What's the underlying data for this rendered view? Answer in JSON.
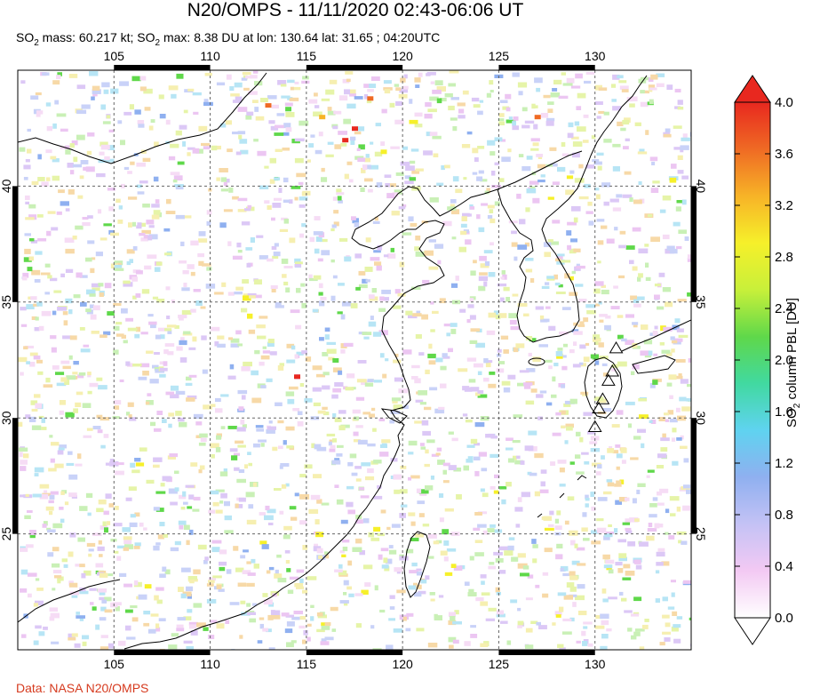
{
  "header": {
    "title": "N20/OMPS - 11/11/2020 02:43-06:06 UT",
    "subtitle_prefix": "SO",
    "subtitle_sub1": "2",
    "subtitle_mid": " mass: 60.217 kt; SO",
    "subtitle_sub2": "2",
    "subtitle_rest": " max: 8.38 DU at lon: 130.64 lat: 31.65 ; 04:20UTC"
  },
  "map": {
    "lon_range": [
      100,
      135
    ],
    "lat_range": [
      20,
      45
    ],
    "lon_ticks": [
      "105",
      "110",
      "115",
      "120",
      "125",
      "130"
    ],
    "lat_ticks": [
      "25",
      "30",
      "35",
      "40"
    ],
    "volcano_icon": "triangle-icon",
    "volcanoes": [
      {
        "lon": 131.1,
        "lat": 33.0
      },
      {
        "lon": 130.9,
        "lat": 32.0
      },
      {
        "lon": 130.7,
        "lat": 31.6
      },
      {
        "lon": 130.4,
        "lat": 30.8
      },
      {
        "lon": 130.2,
        "lat": 30.4
      },
      {
        "lon": 130.0,
        "lat": 29.6
      }
    ],
    "hotspots": [
      {
        "lon": 117.5,
        "lat": 42.5
      },
      {
        "lon": 118.3,
        "lat": 43.8
      },
      {
        "lon": 115.8,
        "lat": 43.0
      },
      {
        "lon": 117.0,
        "lat": 42.0
      },
      {
        "lon": 119.0,
        "lat": 41.5
      },
      {
        "lon": 113.0,
        "lat": 43.5
      },
      {
        "lon": 116.5,
        "lat": 32.5
      },
      {
        "lon": 114.5,
        "lat": 31.8
      },
      {
        "lon": 127.0,
        "lat": 43.0
      }
    ]
  },
  "colorbar": {
    "ticks": [
      "0.0",
      "0.4",
      "0.8",
      "1.2",
      "1.6",
      "2.0",
      "2.4",
      "2.8",
      "3.2",
      "3.6",
      "4.0"
    ],
    "label_prefix": "SO",
    "label_sub": "2",
    "label_rest": " column PBL [DU]",
    "colors": [
      "#ffffff",
      "#f3c9f3",
      "#c4c2f5",
      "#8fb0f0",
      "#5fd3f0",
      "#41d9a0",
      "#5fd84a",
      "#c8f03a",
      "#f6f02a",
      "#f7b327",
      "#ef6a24",
      "#e8281f"
    ]
  },
  "credit": "Data: NASA N20/OMPS"
}
